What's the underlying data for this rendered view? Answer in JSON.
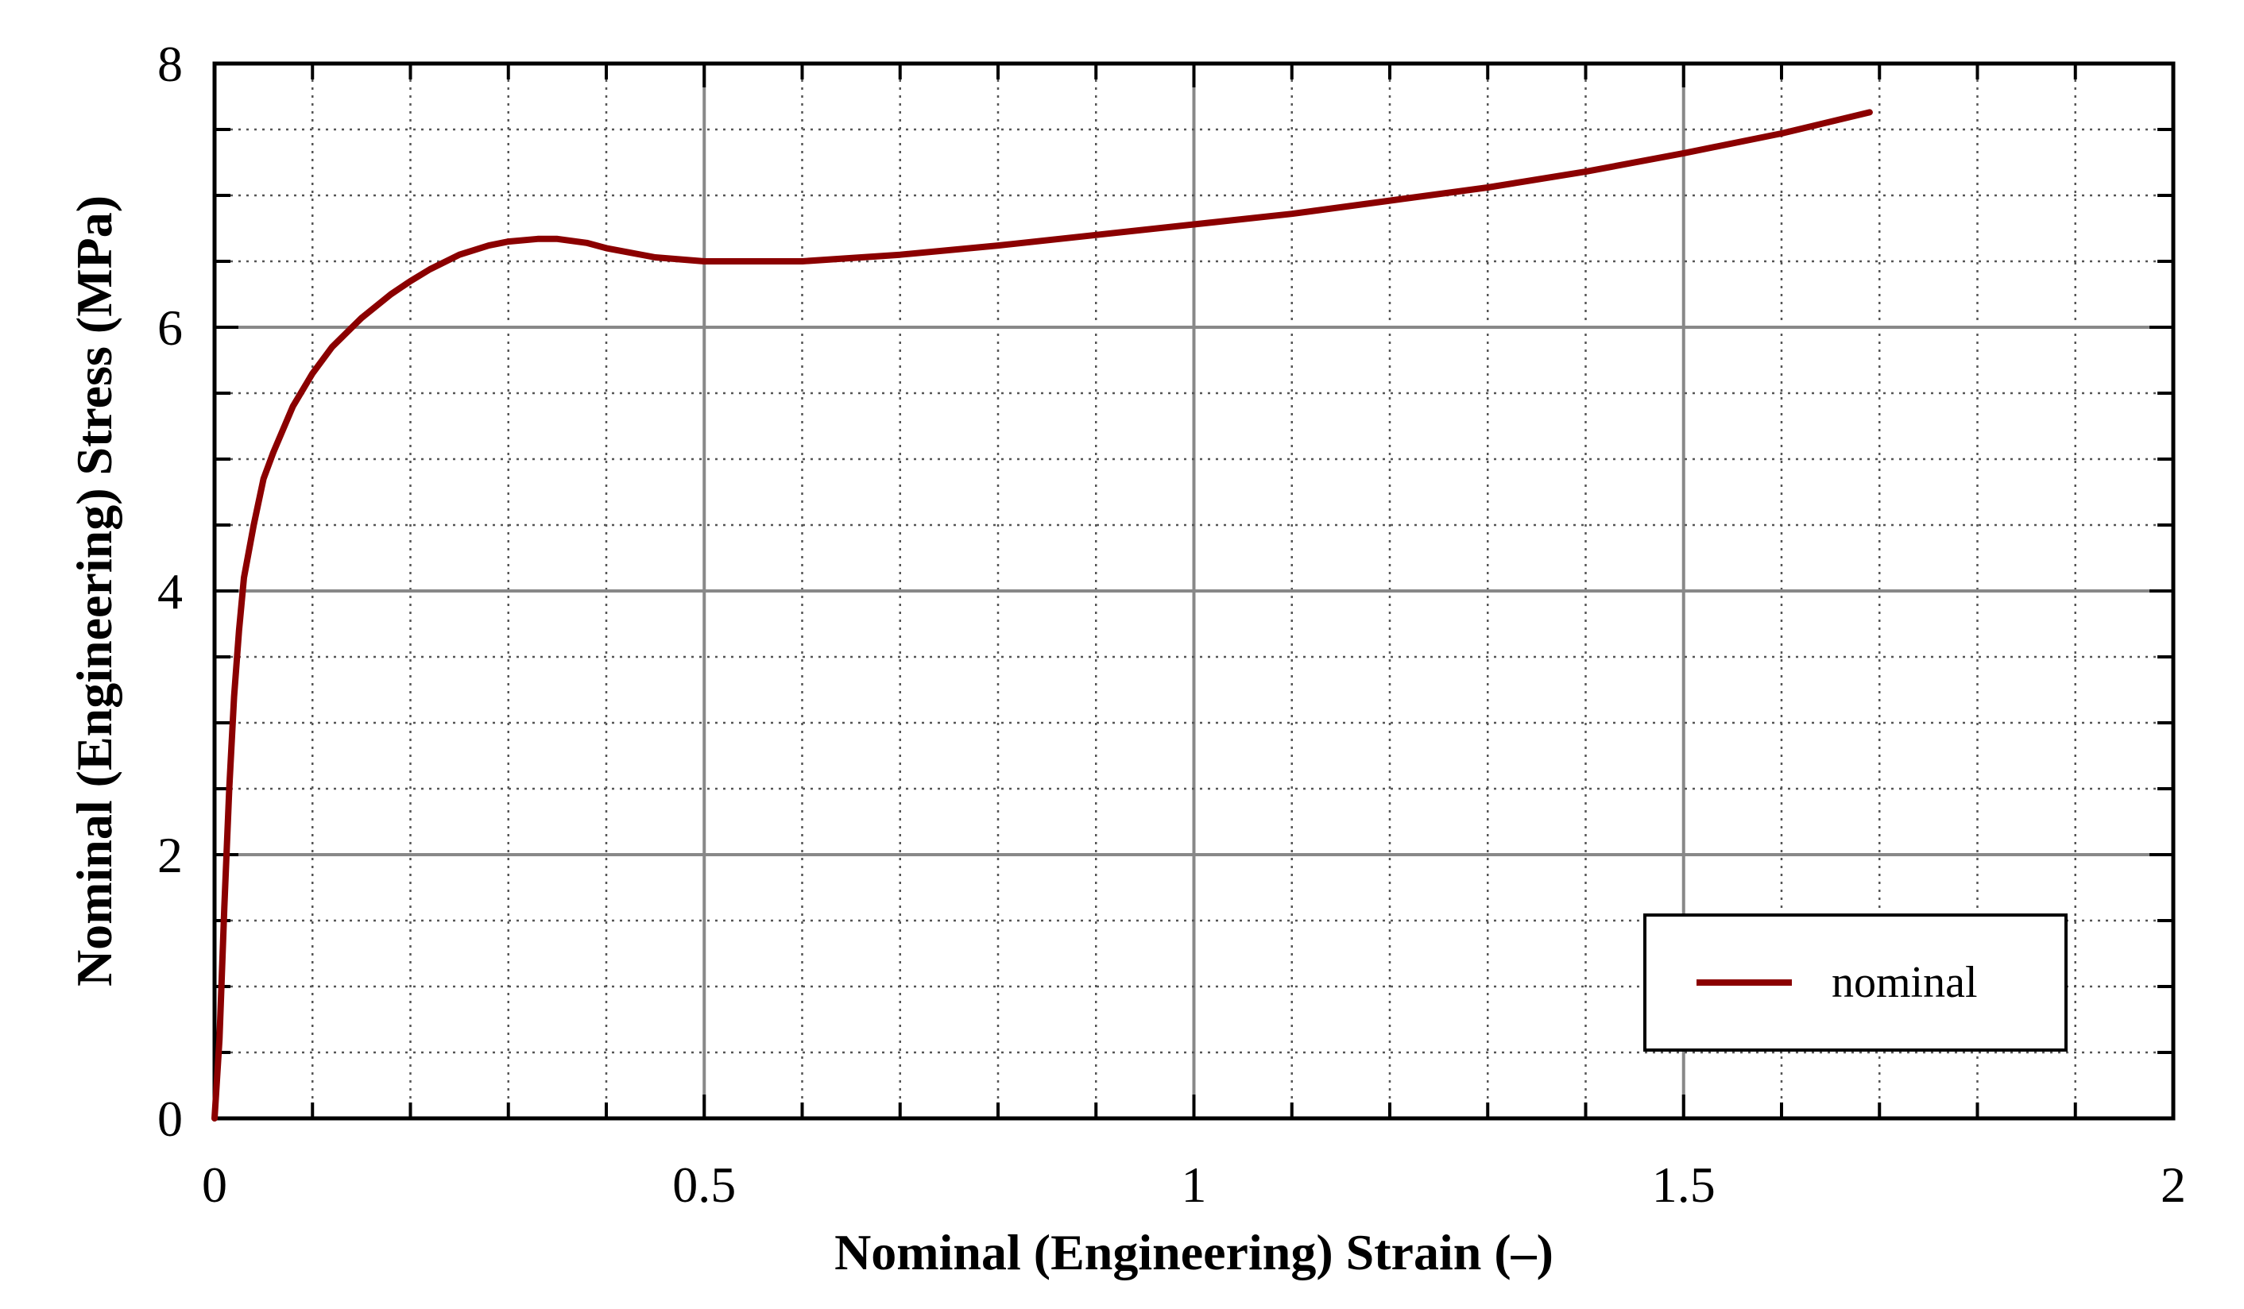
{
  "chart_data": {
    "type": "line",
    "title": "",
    "xlabel": "Nominal (Engineering) Strain (–)",
    "ylabel": "Nominal (Engineering) Stress (MPa)",
    "xlim": [
      0,
      2
    ],
    "ylim": [
      0,
      8
    ],
    "x_ticks": [
      0,
      0.5,
      1,
      1.5,
      2
    ],
    "x_tick_labels": [
      "0",
      "0.5",
      "1",
      "1.5",
      "2"
    ],
    "y_ticks": [
      0,
      2,
      4,
      6,
      8
    ],
    "y_tick_labels": [
      "0",
      "2",
      "4",
      "6",
      "8"
    ],
    "x_minor_step": 0.1,
    "y_minor_step": 0.5,
    "grid": true,
    "legend_position": "bottom-right",
    "series": [
      {
        "name": "nominal",
        "color": "#8b0000",
        "x": [
          0,
          0.005,
          0.01,
          0.015,
          0.02,
          0.025,
          0.03,
          0.04,
          0.05,
          0.06,
          0.08,
          0.1,
          0.12,
          0.15,
          0.18,
          0.2,
          0.22,
          0.25,
          0.28,
          0.3,
          0.33,
          0.35,
          0.38,
          0.4,
          0.45,
          0.5,
          0.55,
          0.6,
          0.7,
          0.8,
          0.9,
          1.0,
          1.1,
          1.2,
          1.3,
          1.4,
          1.5,
          1.6,
          1.69
        ],
        "y": [
          0,
          0.6,
          1.6,
          2.5,
          3.2,
          3.7,
          4.1,
          4.5,
          4.85,
          5.05,
          5.4,
          5.65,
          5.85,
          6.07,
          6.25,
          6.35,
          6.44,
          6.55,
          6.62,
          6.65,
          6.67,
          6.67,
          6.64,
          6.6,
          6.53,
          6.5,
          6.5,
          6.5,
          6.55,
          6.62,
          6.7,
          6.78,
          6.86,
          6.96,
          7.06,
          7.18,
          7.32,
          7.47,
          7.63
        ]
      }
    ]
  }
}
